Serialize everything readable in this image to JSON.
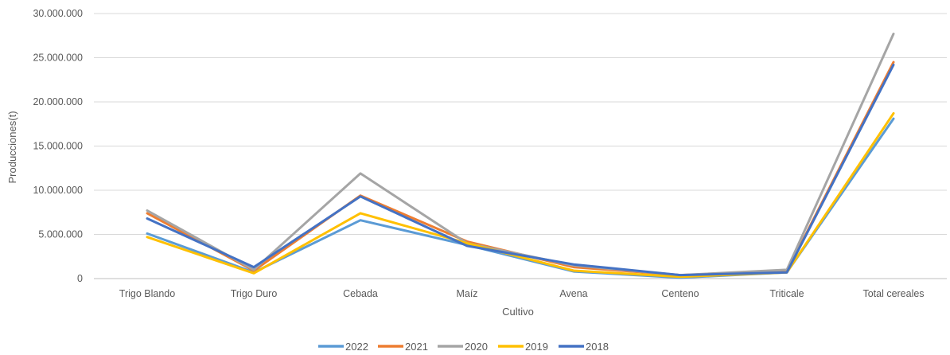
{
  "chart_data": {
    "type": "line",
    "xlabel": "Cultivo",
    "ylabel": "Producciones(t)",
    "ylim": [
      0,
      30000000
    ],
    "y_ticks": [
      0,
      5000000,
      10000000,
      15000000,
      20000000,
      25000000,
      30000000
    ],
    "y_tick_labels": [
      "0",
      "5.000.000",
      "10.000.000",
      "15.000.000",
      "20.000.000",
      "25.000.000",
      "30.000.000"
    ],
    "grid": true,
    "legend_position": "bottom",
    "categories": [
      "Trigo Blando",
      "Trigo Duro",
      "Cebada",
      "Maíz",
      "Avena",
      "Centeno",
      "Triticale",
      "Total cereales"
    ],
    "series": [
      {
        "name": "2022",
        "color": "#5b9bd5",
        "values": [
          5100000,
          700000,
          6600000,
          3800000,
          800000,
          100000,
          700000,
          18100000
        ]
      },
      {
        "name": "2021",
        "color": "#ed7d31",
        "values": [
          7400000,
          900000,
          9400000,
          4200000,
          1300000,
          400000,
          800000,
          24500000
        ]
      },
      {
        "name": "2020",
        "color": "#a5a5a5",
        "values": [
          7700000,
          1000000,
          11900000,
          4000000,
          1500000,
          400000,
          1000000,
          27700000
        ]
      },
      {
        "name": "2019",
        "color": "#ffc000",
        "values": [
          4700000,
          600000,
          7400000,
          4000000,
          900000,
          200000,
          700000,
          18700000
        ]
      },
      {
        "name": "2018",
        "color": "#4472c4",
        "values": [
          6800000,
          1300000,
          9300000,
          3700000,
          1600000,
          400000,
          700000,
          24200000
        ]
      }
    ]
  }
}
